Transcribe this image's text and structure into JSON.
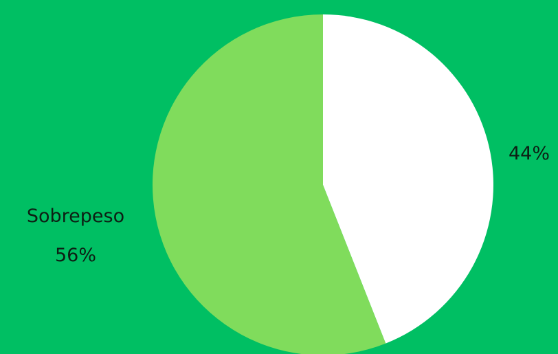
{
  "chart_data": {
    "type": "pie",
    "title": "",
    "start_angle_deg": 0,
    "direction": "clockwise",
    "slices": [
      {
        "label": "",
        "value": 44,
        "display": "44%",
        "color": "#ffffff"
      },
      {
        "label": "Sobrepeso",
        "value": 56,
        "display": "56%",
        "color": "#80dc5c"
      }
    ],
    "background": "#00bf63"
  }
}
